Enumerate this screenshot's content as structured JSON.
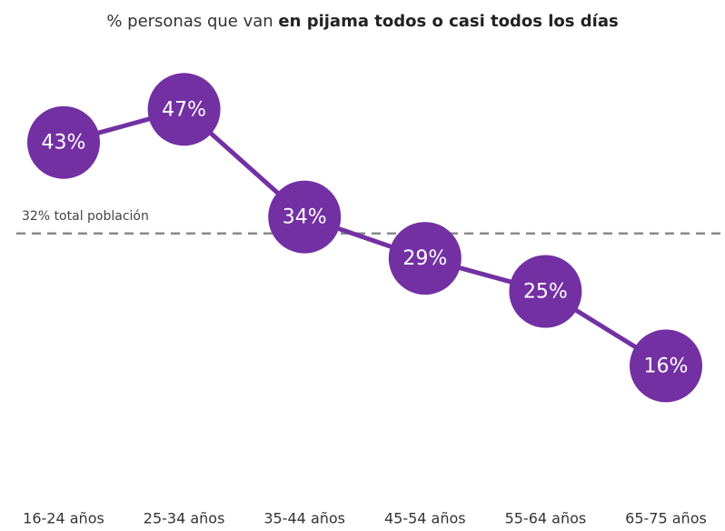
{
  "chart_data": {
    "type": "line",
    "title_parts": [
      "% personas que van",
      "en pijama todos o casi todos los días"
    ],
    "categories": [
      "16-24 años",
      "25-34 años",
      "35-44 años",
      "45-54 años",
      "55-64 años",
      "65-75 años"
    ],
    "values": [
      43,
      47,
      34,
      29,
      25,
      16
    ],
    "value_labels": [
      "43%",
      "47%",
      "34%",
      "29%",
      "25%",
      "16%"
    ],
    "color": "#7330a3",
    "ylim": [
      0,
      60
    ],
    "reference_line": {
      "value": 32,
      "label": "32% total población",
      "color": "#8a8a8a"
    }
  }
}
